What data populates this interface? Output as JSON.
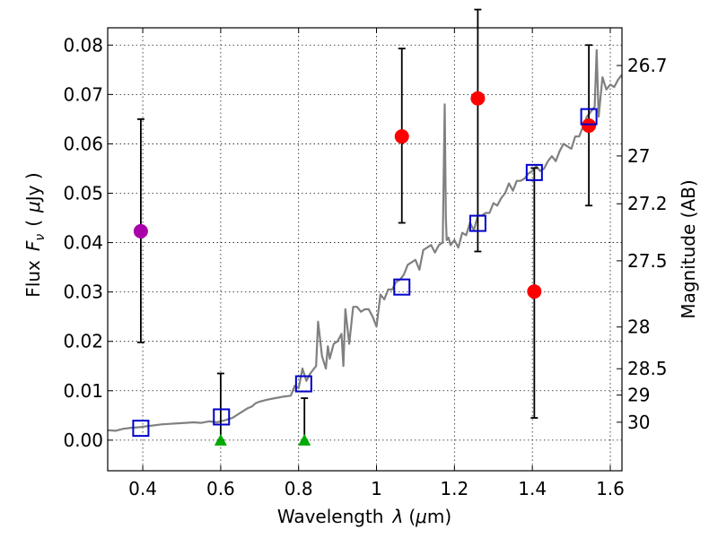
{
  "chart_data": {
    "type": "scatter",
    "xlabel_text": "Wavelength",
    "xlabel_symbol": "λ",
    "xlabel_unit_open": "(",
    "xlabel_unit_mu": "μ",
    "xlabel_unit_rest": "m)",
    "ylabel_text": "Flux",
    "ylabel_symbol": "F",
    "ylabel_subscript": "ν",
    "ylabel_unit_open": "(",
    "ylabel_unit_mu": "μ",
    "ylabel_unit_rest": "Jy )",
    "y2label": "Magnitude (AB)",
    "xlim": [
      0.31,
      1.63
    ],
    "ylim": [
      -0.0062,
      0.0835
    ],
    "x_ticks": [
      0.4,
      0.6,
      0.8,
      1.0,
      1.2,
      1.4,
      1.6
    ],
    "x_tick_labels": [
      "0.4",
      "0.6",
      "0.8",
      "1",
      "1.2",
      "1.4",
      "1.6"
    ],
    "y_ticks": [
      0.0,
      0.01,
      0.02,
      0.03,
      0.04,
      0.05,
      0.06,
      0.07,
      0.08
    ],
    "y_tick_labels": [
      "0.00",
      "0.01",
      "0.02",
      "0.03",
      "0.04",
      "0.05",
      "0.06",
      "0.07",
      "0.08"
    ],
    "mag_ticks": [
      {
        "label": "26.7",
        "mag": 26.7
      },
      {
        "label": "27",
        "mag": 27.0
      },
      {
        "label": "27.2",
        "mag": 27.2
      },
      {
        "label": "27.5",
        "mag": 27.5
      },
      {
        "label": "28",
        "mag": 28.0
      },
      {
        "label": "28.5",
        "mag": 28.5
      },
      {
        "label": "29",
        "mag": 29.0
      },
      {
        "label": "30",
        "mag": 30.0
      }
    ],
    "colors": {
      "detection": "#ff0000",
      "blue_band": "#aa00aa",
      "upper_limit": "#00aa00",
      "model_photometry": "#0000cc",
      "spectrum": "#808080"
    },
    "series": [
      {
        "name": "detections",
        "marker": "circle",
        "color": "#ff0000",
        "points": [
          {
            "x": 1.065,
            "y": 0.0615,
            "err_low": 0.0175,
            "err_high": 0.0178
          },
          {
            "x": 1.26,
            "y": 0.0692,
            "err_low": 0.031,
            "err_high": 0.018
          },
          {
            "x": 1.405,
            "y": 0.0301,
            "err_low": 0.0256,
            "err_high": 0.025
          },
          {
            "x": 1.545,
            "y": 0.0637,
            "err_low": 0.0162,
            "err_high": 0.0163
          }
        ]
      },
      {
        "name": "blue_band",
        "marker": "circle",
        "color": "#aa00aa",
        "points": [
          {
            "x": 0.395,
            "y": 0.0423,
            "err_low": 0.0225,
            "err_high": 0.0227
          }
        ]
      },
      {
        "name": "non_detections",
        "marker": "triangle",
        "color": "#00aa00",
        "points": [
          {
            "x": 0.6,
            "y": 0.0,
            "err_low": 0.0,
            "err_high": 0.0135
          },
          {
            "x": 0.815,
            "y": 0.0,
            "err_low": 0.0,
            "err_high": 0.0085
          }
        ]
      },
      {
        "name": "model_photometry",
        "marker": "square",
        "color": "#0000cc",
        "points": [
          {
            "x": 0.395,
            "y": 0.0024
          },
          {
            "x": 0.602,
            "y": 0.0047
          },
          {
            "x": 0.813,
            "y": 0.0114
          },
          {
            "x": 1.065,
            "y": 0.031
          },
          {
            "x": 1.26,
            "y": 0.0439
          },
          {
            "x": 1.405,
            "y": 0.0542
          },
          {
            "x": 1.545,
            "y": 0.0655
          }
        ]
      },
      {
        "name": "template_spectrum",
        "marker": "line",
        "color": "#808080",
        "x": [
          0.31,
          0.33,
          0.35,
          0.37,
          0.39,
          0.41,
          0.43,
          0.45,
          0.47,
          0.49,
          0.51,
          0.53,
          0.55,
          0.57,
          0.59,
          0.61,
          0.63,
          0.65,
          0.67,
          0.68,
          0.69,
          0.7,
          0.72,
          0.74,
          0.76,
          0.78,
          0.79,
          0.8,
          0.805,
          0.81,
          0.82,
          0.83,
          0.845,
          0.85,
          0.86,
          0.87,
          0.875,
          0.88,
          0.89,
          0.9,
          0.91,
          0.915,
          0.92,
          0.93,
          0.94,
          0.95,
          0.96,
          0.97,
          0.98,
          0.99,
          1.0,
          1.01,
          1.02,
          1.03,
          1.04,
          1.05,
          1.06,
          1.07,
          1.08,
          1.09,
          1.1,
          1.11,
          1.12,
          1.13,
          1.14,
          1.15,
          1.16,
          1.17,
          1.175,
          1.178,
          1.18,
          1.185,
          1.19,
          1.2,
          1.21,
          1.22,
          1.23,
          1.24,
          1.25,
          1.26,
          1.27,
          1.28,
          1.29,
          1.3,
          1.31,
          1.32,
          1.33,
          1.34,
          1.35,
          1.36,
          1.37,
          1.38,
          1.39,
          1.4,
          1.41,
          1.42,
          1.43,
          1.44,
          1.45,
          1.46,
          1.47,
          1.48,
          1.49,
          1.5,
          1.51,
          1.52,
          1.53,
          1.54,
          1.55,
          1.56,
          1.565,
          1.57,
          1.58,
          1.59,
          1.6,
          1.61,
          1.62,
          1.63
        ],
        "y": [
          0.002,
          0.0019,
          0.0023,
          0.0025,
          0.0026,
          0.0028,
          0.003,
          0.0032,
          0.0033,
          0.0034,
          0.0035,
          0.0036,
          0.0035,
          0.0038,
          0.0036,
          0.004,
          0.0045,
          0.0055,
          0.0065,
          0.0068,
          0.0075,
          0.0078,
          0.0082,
          0.0085,
          0.0088,
          0.009,
          0.011,
          0.0105,
          0.0125,
          0.0145,
          0.012,
          0.0135,
          0.015,
          0.024,
          0.017,
          0.0145,
          0.019,
          0.0165,
          0.0195,
          0.02,
          0.0215,
          0.015,
          0.0265,
          0.0195,
          0.027,
          0.027,
          0.026,
          0.0265,
          0.0265,
          0.025,
          0.023,
          0.0295,
          0.0285,
          0.0305,
          0.0305,
          0.032,
          0.0325,
          0.0335,
          0.0355,
          0.036,
          0.0365,
          0.0345,
          0.0385,
          0.039,
          0.0395,
          0.038,
          0.0395,
          0.04,
          0.068,
          0.045,
          0.0405,
          0.041,
          0.0395,
          0.0405,
          0.039,
          0.042,
          0.0415,
          0.044,
          0.0425,
          0.0455,
          0.0455,
          0.046,
          0.046,
          0.048,
          0.0475,
          0.049,
          0.05,
          0.052,
          0.0505,
          0.0525,
          0.0525,
          0.053,
          0.054,
          0.0545,
          0.0555,
          0.0545,
          0.055,
          0.0565,
          0.0575,
          0.0565,
          0.0585,
          0.06,
          0.0595,
          0.059,
          0.0615,
          0.0615,
          0.0635,
          0.0655,
          0.0665,
          0.0675,
          0.079,
          0.0655,
          0.0735,
          0.071,
          0.072,
          0.0715,
          0.073,
          0.074
        ]
      }
    ]
  }
}
